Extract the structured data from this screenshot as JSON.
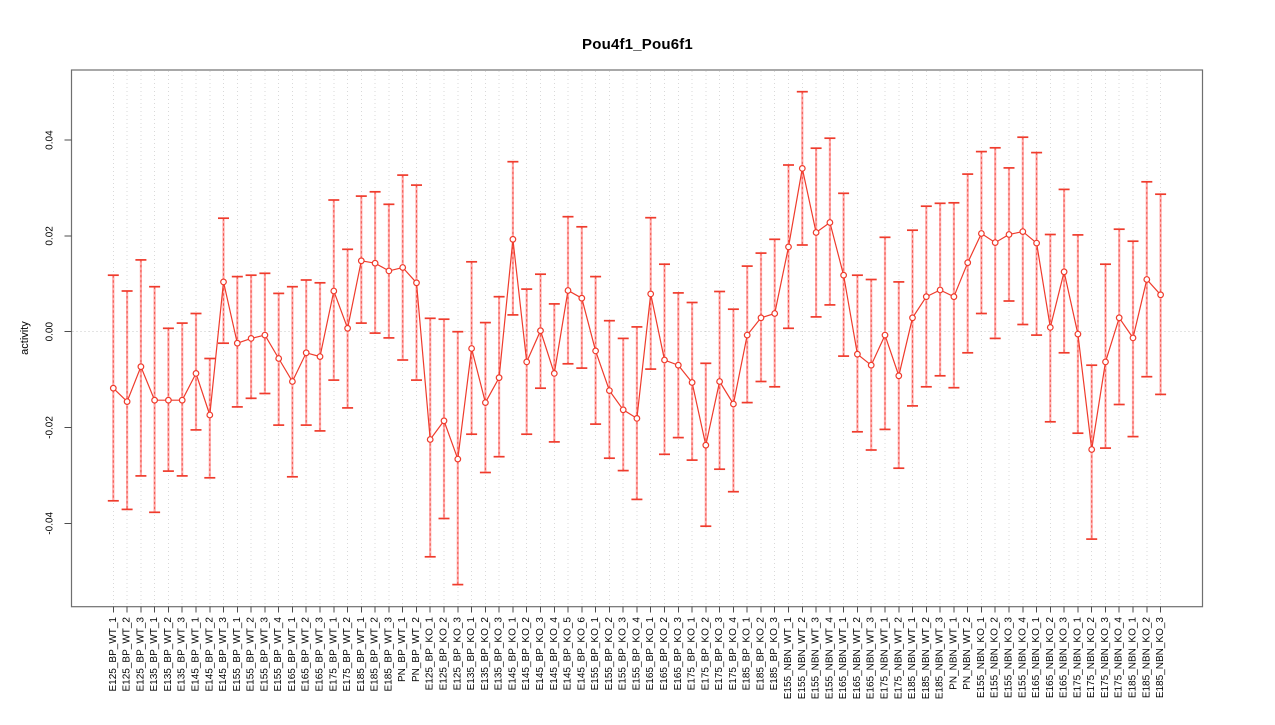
{
  "page": {
    "background": "#ffffff"
  },
  "chart_data": {
    "type": "line",
    "title": "Pou4f1_Pou6f1",
    "xlabel": "",
    "ylabel": "activity",
    "ylim": [
      -0.057,
      0.055
    ],
    "yticks": [
      -0.04,
      -0.02,
      0.0,
      0.02,
      0.04
    ],
    "ytick_labels": [
      "-0.04",
      "-0.02",
      "0.00",
      "0.02",
      "0.04"
    ],
    "legend_position": "none",
    "grid": {
      "vertical": "dotted line at every category",
      "horizontal": "dotted line at y=0 only"
    },
    "marker": "open-circle",
    "error_bars": true,
    "colors": {
      "point_red": "#ef3b2c",
      "bar_pink": "#ffaaaa",
      "grid_gray": "#d9d9d9",
      "zero_line_gray": "#c9c9c9",
      "frame_gray": "#6f6f6f",
      "tick_dark": "#4d4d4d",
      "text": "#000000"
    },
    "categories": [
      "E125_BP_WT_1",
      "E125_BP_WT_2",
      "E125_BP_WT_3",
      "E135_BP_WT_1",
      "E135_BP_WT_2",
      "E135_BP_WT_3",
      "E145_BP_WT_1",
      "E145_BP_WT_2",
      "E145_BP_WT_3",
      "E155_BP_WT_1",
      "E155_BP_WT_2",
      "E155_BP_WT_3",
      "E155_BP_WT_4",
      "E165_BP_WT_1",
      "E165_BP_WT_2",
      "E165_BP_WT_3",
      "E175_BP_WT_1",
      "E175_BP_WT_2",
      "E185_BP_WT_1",
      "E185_BP_WT_2",
      "E185_BP_WT_3",
      "PN_BP_WT_1",
      "PN_BP_WT_2",
      "E125_BP_KO_1",
      "E125_BP_KO_2",
      "E125_BP_KO_3",
      "E135_BP_KO_1",
      "E135_BP_KO_2",
      "E135_BP_KO_3",
      "E145_BP_KO_1",
      "E145_BP_KO_2",
      "E145_BP_KO_3",
      "E145_BP_KO_4",
      "E145_BP_KO_5",
      "E145_BP_KO_6",
      "E155_BP_KO_1",
      "E155_BP_KO_2",
      "E155_BP_KO_3",
      "E155_BP_KO_4",
      "E165_BP_KO_1",
      "E165_BP_KO_2",
      "E165_BP_KO_3",
      "E175_BP_KO_1",
      "E175_BP_KO_2",
      "E175_BP_KO_3",
      "E175_BP_KO_4",
      "E185_BP_KO_1",
      "E185_BP_KO_2",
      "E185_BP_KO_3",
      "E155_NBN_WT_1",
      "E155_NBN_WT_2",
      "E155_NBN_WT_3",
      "E155_NBN_WT_4",
      "E165_NBN_WT_1",
      "E165_NBN_WT_2",
      "E165_NBN_WT_3",
      "E175_NBN_WT_1",
      "E175_NBN_WT_2",
      "E185_NBN_WT_1",
      "E185_NBN_WT_2",
      "E185_NBN_WT_3",
      "PN_NBN_WT_1",
      "PN_NBN_WT_2",
      "E155_NBN_KO_1",
      "E155_NBN_KO_2",
      "E155_NBN_KO_3",
      "E155_NBN_KO_4",
      "E165_NBN_KO_1",
      "E165_NBN_KO_2",
      "E165_NBN_KO_3",
      "E175_NBN_KO_1",
      "E175_NBN_KO_2",
      "E175_NBN_KO_3",
      "E175_NBN_KO_4",
      "E185_NBN_KO_1",
      "E185_NBN_KO_2",
      "E185_NBN_KO_3"
    ],
    "series": [
      {
        "name": "activity",
        "values": [
          -0.0118,
          -0.0146,
          -0.0073,
          -0.0143,
          -0.0143,
          -0.0143,
          -0.0087,
          -0.0174,
          0.0104,
          -0.0024,
          -0.0014,
          -0.0007,
          -0.0056,
          -0.0104,
          -0.0044,
          -0.0052,
          0.0085,
          0.0007,
          0.0148,
          0.0143,
          0.0127,
          0.0134,
          0.0102,
          -0.0225,
          -0.0186,
          -0.0266,
          -0.0035,
          -0.0148,
          -0.0096,
          0.0193,
          -0.0063,
          0.0002,
          -0.0087,
          0.0086,
          0.007,
          -0.004,
          -0.0123,
          -0.0163,
          -0.0181,
          0.0079,
          -0.0059,
          -0.007,
          -0.0106,
          -0.0237,
          -0.0104,
          -0.0151,
          -0.0007,
          0.0029,
          0.0038,
          0.0177,
          0.0341,
          0.0207,
          0.0228,
          0.0118,
          -0.0047,
          -0.007,
          -0.0007,
          -0.0092,
          0.0029,
          0.0073,
          0.0087,
          0.0073,
          0.0144,
          0.0205,
          0.0186,
          0.0203,
          0.0209,
          0.0185,
          0.0009,
          0.0125,
          -0.0005,
          -0.0246,
          -0.0063,
          0.0029,
          -0.0013,
          0.0109,
          0.0077
        ],
        "error_low": [
          -0.0353,
          -0.0371,
          -0.0301,
          -0.0377,
          -0.0291,
          -0.0301,
          -0.0205,
          -0.0305,
          -0.0024,
          -0.0157,
          -0.0139,
          -0.0129,
          -0.0195,
          -0.0303,
          -0.0195,
          -0.0207,
          -0.0101,
          -0.0159,
          0.0018,
          -0.0003,
          -0.0013,
          -0.0059,
          -0.0101,
          -0.047,
          -0.039,
          -0.0528,
          -0.0214,
          -0.0294,
          -0.0261,
          0.0035,
          -0.0214,
          -0.0118,
          -0.023,
          -0.0067,
          -0.0076,
          -0.0193,
          -0.0264,
          -0.029,
          -0.035,
          -0.0078,
          -0.0256,
          -0.0221,
          -0.0268,
          -0.0406,
          -0.0287,
          -0.0334,
          -0.0148,
          -0.0104,
          -0.0115,
          0.0007,
          0.0181,
          0.0031,
          0.0056,
          -0.0051,
          -0.0209,
          -0.0247,
          -0.0204,
          -0.0285,
          -0.0155,
          -0.0115,
          -0.0092,
          -0.0117,
          -0.0044,
          0.0038,
          -0.0014,
          0.0064,
          0.0015,
          -0.0007,
          -0.0188,
          -0.0044,
          -0.0212,
          -0.0433,
          -0.0243,
          -0.0152,
          -0.0219,
          -0.0094,
          -0.0131
        ],
        "error_high": [
          0.0118,
          0.0085,
          0.015,
          0.0094,
          0.0007,
          0.0018,
          0.0038,
          -0.0056,
          0.0237,
          0.0115,
          0.0118,
          0.0122,
          0.008,
          0.0094,
          0.0108,
          0.0102,
          0.0275,
          0.0172,
          0.0283,
          0.0292,
          0.0266,
          0.0327,
          0.0306,
          0.0028,
          0.0026,
          0.0,
          0.0146,
          0.0019,
          0.0073,
          0.0355,
          0.0089,
          0.012,
          0.0058,
          0.024,
          0.0219,
          0.0115,
          0.0023,
          -0.0014,
          0.001,
          0.0238,
          0.0141,
          0.0081,
          0.0061,
          -0.0066,
          0.0084,
          0.0047,
          0.0137,
          0.0164,
          0.0193,
          0.0348,
          0.0501,
          0.0383,
          0.0404,
          0.0289,
          0.0118,
          0.0109,
          0.0197,
          0.0104,
          0.0212,
          0.0262,
          0.0268,
          0.0269,
          0.0329,
          0.0376,
          0.0384,
          0.0342,
          0.0406,
          0.0374,
          0.0203,
          0.0297,
          0.0202,
          -0.007,
          0.0141,
          0.0214,
          0.0189,
          0.0313,
          0.0287
        ]
      }
    ]
  }
}
